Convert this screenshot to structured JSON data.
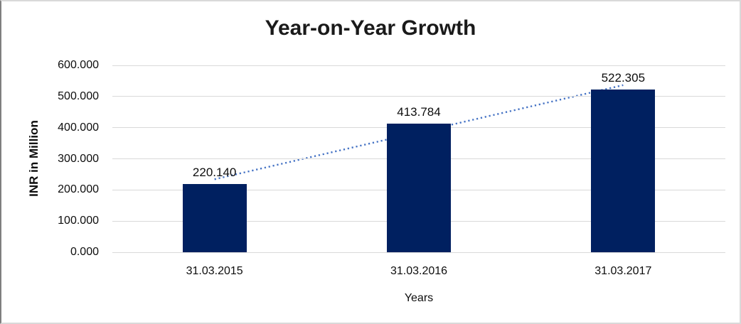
{
  "frame": {
    "background": "#ffffff",
    "border_color": "#d9d9d9",
    "border_left_color": "#7f7f7f"
  },
  "chart_data": {
    "type": "bar",
    "title": "Year-on-Year Growth",
    "xlabel": "Years",
    "ylabel": "INR in Million",
    "categories": [
      "31.03.2015",
      "31.03.2016",
      "31.03.2017"
    ],
    "values": [
      220.14,
      413.784,
      522.305
    ],
    "value_labels": [
      "220.140",
      "413.784",
      "522.305"
    ],
    "ylim": [
      0,
      600
    ],
    "ytick_values": [
      0,
      100,
      200,
      300,
      400,
      500,
      600
    ],
    "ytick_labels": [
      "0.000",
      "100.000",
      "200.000",
      "300.000",
      "400.000",
      "500.000",
      "600.000"
    ],
    "grid": "horizontal",
    "legend": "none",
    "bar_color": "#002060",
    "gridline_color": "#d9d9d9",
    "trendline": {
      "style": "dotted",
      "color": "#4472C4",
      "y_at_first_category": 234.3,
      "y_at_last_category": 536.5
    }
  }
}
